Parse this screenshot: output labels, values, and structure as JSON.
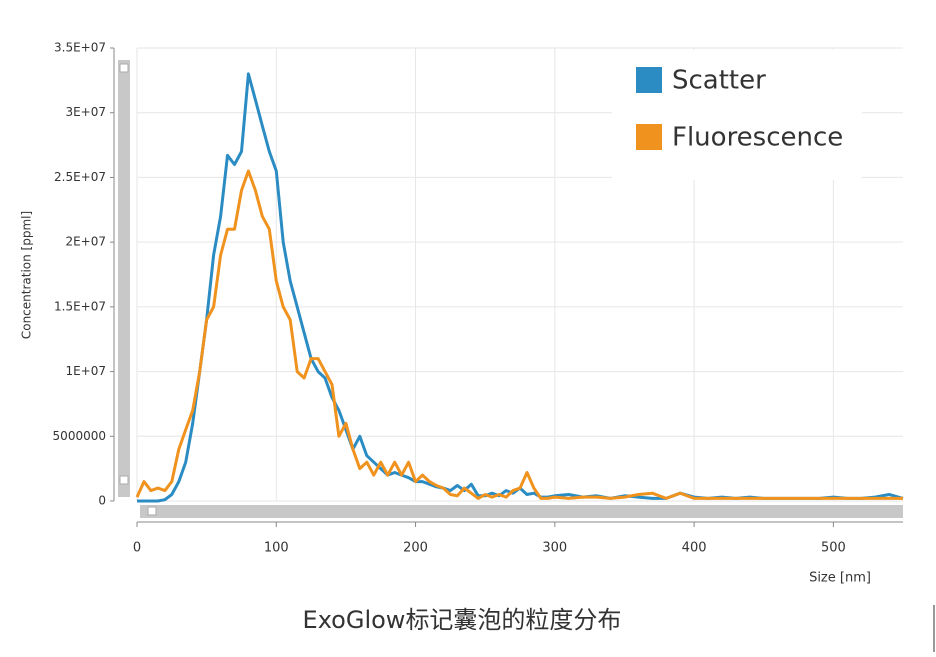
{
  "chart_data": {
    "type": "line",
    "caption": "ExoGlow标记囊泡的粒度分布",
    "x_label": "Size [nm]",
    "y_label": "Concentration [ppml]",
    "x": [
      0,
      5,
      10,
      15,
      20,
      25,
      30,
      35,
      40,
      45,
      50,
      55,
      60,
      65,
      70,
      75,
      80,
      85,
      90,
      95,
      100,
      105,
      110,
      115,
      120,
      125,
      130,
      135,
      140,
      145,
      150,
      155,
      160,
      165,
      170,
      175,
      180,
      185,
      190,
      195,
      200,
      205,
      210,
      215,
      220,
      225,
      230,
      235,
      240,
      245,
      250,
      255,
      260,
      265,
      270,
      275,
      280,
      285,
      290,
      295,
      300,
      310,
      320,
      330,
      340,
      350,
      360,
      370,
      380,
      390,
      400,
      410,
      420,
      430,
      440,
      450,
      460,
      470,
      480,
      490,
      500,
      510,
      520,
      530,
      540,
      550
    ],
    "series": [
      {
        "name": "Scatter",
        "color": "#2b8cc4",
        "values": [
          0,
          0,
          0,
          0,
          100000.0,
          500000.0,
          1500000.0,
          3000000.0,
          6000000.0,
          10000000.0,
          14000000.0,
          19000000.0,
          22000000.0,
          26700000.0,
          26000000.0,
          27000000.0,
          33000000.0,
          31000000.0,
          29000000.0,
          27000000.0,
          25500000.0,
          20000000.0,
          17000000.0,
          15000000.0,
          13000000.0,
          11000000.0,
          10000000.0,
          9500000.0,
          8000000.0,
          7000000.0,
          5500000.0,
          4000000.0,
          5000000.0,
          3500000.0,
          3000000.0,
          2500000.0,
          2000000.0,
          2200000.0,
          2000000.0,
          1800000.0,
          1500000.0,
          1500000.0,
          1300000.0,
          1100000.0,
          1000000.0,
          800000.0,
          1200000.0,
          800000.0,
          1300000.0,
          400000.0,
          400000.0,
          600000.0,
          400000.0,
          800000.0,
          600000.0,
          1000000.0,
          500000.0,
          600000.0,
          300000.0,
          300000.0,
          400000.0,
          500000.0,
          300000.0,
          400000.0,
          200000.0,
          400000.0,
          300000.0,
          200000.0,
          200000.0,
          600000.0,
          300000.0,
          200000.0,
          300000.0,
          200000.0,
          300000.0,
          200000.0,
          200000.0,
          200000.0,
          200000.0,
          200000.0,
          300000.0,
          200000.0,
          200000.0,
          300000.0,
          500000.0,
          200000.0
        ]
      },
      {
        "name": "Fluorescence",
        "color": "#f0921e",
        "values": [
          300000.0,
          1500000.0,
          800000.0,
          1000000.0,
          800000.0,
          1500000.0,
          4000000.0,
          5500000.0,
          7000000.0,
          10000000.0,
          14000000.0,
          15000000.0,
          19000000.0,
          21000000.0,
          21000000.0,
          24000000.0,
          25500000.0,
          24000000.0,
          22000000.0,
          21000000.0,
          17000000.0,
          15000000.0,
          14000000.0,
          10000000.0,
          9500000.0,
          11000000.0,
          11000000.0,
          10000000.0,
          9000000.0,
          5000000.0,
          6000000.0,
          4000000.0,
          2500000.0,
          3000000.0,
          2000000.0,
          3000000.0,
          2000000.0,
          3000000.0,
          2000000.0,
          3000000.0,
          1500000.0,
          2000000.0,
          1500000.0,
          1200000.0,
          1000000.0,
          500000.0,
          400000.0,
          1000000.0,
          600000.0,
          200000.0,
          500000.0,
          300000.0,
          500000.0,
          300000.0,
          800000.0,
          1000000.0,
          2200000.0,
          1000000.0,
          200000.0,
          200000.0,
          300000.0,
          200000.0,
          300000.0,
          300000.0,
          200000.0,
          300000.0,
          500000.0,
          600000.0,
          200000.0,
          600000.0,
          200000.0,
          200000.0,
          200000.0,
          200000.0,
          200000.0,
          200000.0,
          200000.0,
          200000.0,
          200000.0,
          200000.0,
          200000.0,
          200000.0,
          200000.0,
          200000.0,
          200000.0,
          200000.0
        ]
      }
    ],
    "xlim": [
      0,
      550
    ],
    "xticks": [
      0,
      100,
      200,
      300,
      400,
      500
    ],
    "ylim": [
      0,
      35000000
    ],
    "yticks": [
      0,
      5000000,
      {
        "value": 10000000,
        "label": "1E+07"
      },
      {
        "value": 15000000,
        "label": "1.5E+07"
      },
      {
        "value": 20000000,
        "label": "2E+07"
      },
      {
        "value": 25000000,
        "label": "2.5E+07"
      },
      {
        "value": 30000000,
        "label": "3E+07"
      },
      {
        "value": 35000000,
        "label": "3.5E+07"
      }
    ],
    "grid": true,
    "legend": "upper right"
  }
}
